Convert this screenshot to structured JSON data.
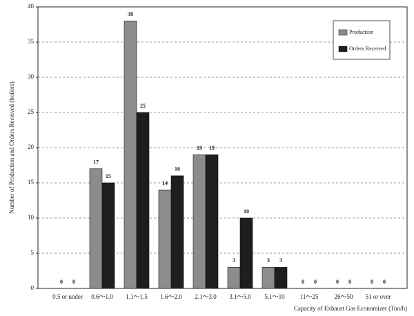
{
  "chart_data": {
    "type": "bar",
    "xlabel": "Capacity of Exhaust Gas Economizer (Ton/h)",
    "ylabel": "Number of Production and Orders Received (boilers)",
    "categories": [
      "0.5 or under",
      "0.6～1.0",
      "1.1～1.5",
      "1.6～2.0",
      "2.1～3.0",
      "3.1～5.0",
      "5.1～10",
      "11～25",
      "26～50",
      "51 or over"
    ],
    "series": [
      {
        "name": "Production",
        "color": "#8c8c8c",
        "values": [
          0,
          17,
          38,
          14,
          19,
          3,
          3,
          0,
          0,
          0
        ]
      },
      {
        "name": "Orders Received",
        "color": "#1e1e1e",
        "values": [
          0,
          15,
          25,
          16,
          19,
          10,
          3,
          0,
          0,
          0
        ]
      }
    ],
    "ylim": [
      0,
      40
    ],
    "yticks": [
      0,
      5,
      10,
      15,
      20,
      25,
      30,
      35,
      40
    ],
    "grid": true,
    "legend": "upper right"
  }
}
